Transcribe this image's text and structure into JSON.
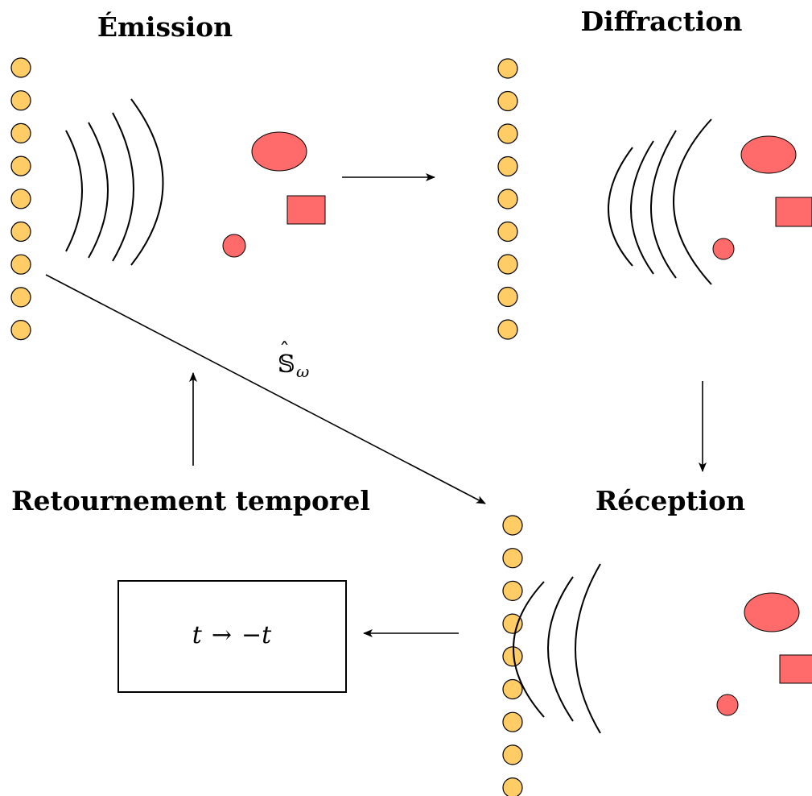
{
  "labels": {
    "emission": "Émission",
    "diffraction": "Diffraction",
    "reception": "Réception",
    "time_reversal": "Retournement temporel",
    "operator_base": "𝕊",
    "operator_hat": "ˆ",
    "operator_sub": "ω",
    "box_t": "t",
    "box_arrow": "→",
    "box_minus_t": "−t"
  },
  "colors": {
    "sensor_fill": "#ffcc66",
    "scatterer_fill": "#ff6b6b",
    "stroke": "#000000"
  },
  "panels": [
    {
      "name": "emission",
      "sensor_count": 9
    },
    {
      "name": "diffraction",
      "sensor_count": 9
    },
    {
      "name": "reception",
      "sensor_count": 9
    }
  ]
}
